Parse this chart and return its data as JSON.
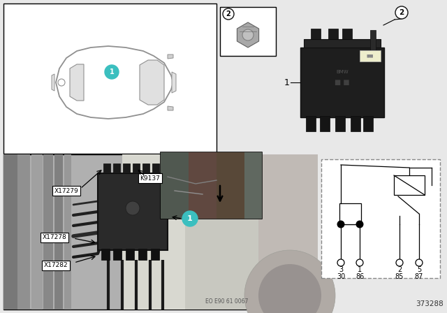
{
  "doc_number": "373288",
  "ref_code": "EO E90 61 0067",
  "bg_color": "#e8e8e8",
  "white": "#ffffff",
  "teal": "#3bbfbf",
  "black": "#111111",
  "dark_relay": "#2a2a2a",
  "mid_gray": "#888888",
  "light_gray": "#cccccc",
  "panel_gray": "#b8b8b8",
  "car_outline": "#999999",
  "pin_top": [
    "3",
    "1",
    "2",
    "5"
  ],
  "pin_bot": [
    "30",
    "86",
    "85",
    "87"
  ]
}
